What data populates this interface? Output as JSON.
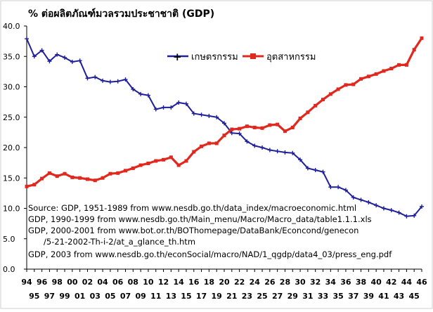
{
  "chart_data": {
    "type": "line",
    "title": "% ต่อผลิตภัณฑ์มวลรวมประชาชาติ (GDP)",
    "xlabel": "",
    "ylabel": "",
    "ylim": [
      0,
      40
    ],
    "yticks": [
      "0.0",
      "5.0",
      "10.0",
      "15.0",
      "20.0",
      "25.0",
      "30.0",
      "35.0",
      "40.0"
    ],
    "x": [
      "94",
      "95",
      "96",
      "97",
      "98",
      "99",
      "00",
      "01",
      "02",
      "03",
      "04",
      "05",
      "06",
      "07",
      "08",
      "09",
      "10",
      "11",
      "12",
      "13",
      "14",
      "15",
      "16",
      "17",
      "18",
      "19",
      "20",
      "21",
      "22",
      "23",
      "24",
      "25",
      "26",
      "27",
      "28",
      "29",
      "30",
      "31",
      "32",
      "33",
      "34",
      "35",
      "36",
      "37",
      "38",
      "39",
      "40",
      "41",
      "42",
      "43",
      "44",
      "45",
      "46"
    ],
    "xtick_top": [
      "94",
      "96",
      "98",
      "00",
      "02",
      "04",
      "06",
      "08",
      "10",
      "12",
      "14",
      "16",
      "18",
      "20",
      "22",
      "24",
      "26",
      "28",
      "30",
      "32",
      "34",
      "36",
      "38",
      "40",
      "42",
      "44",
      "46"
    ],
    "xtick_bottom": [
      "95",
      "97",
      "99",
      "01",
      "03",
      "05",
      "07",
      "09",
      "11",
      "13",
      "15",
      "17",
      "19",
      "21",
      "23",
      "25",
      "27",
      "29",
      "31",
      "33",
      "35",
      "37",
      "39",
      "41",
      "43",
      "45"
    ],
    "series": [
      {
        "name": "เกษตรกรรม",
        "color": "#1f1f9a",
        "marker": "plus",
        "values": [
          37.9,
          35.0,
          36.0,
          34.2,
          35.3,
          34.8,
          34.1,
          34.3,
          31.4,
          31.6,
          31.0,
          30.8,
          30.9,
          31.2,
          29.6,
          28.8,
          28.6,
          26.3,
          26.6,
          26.6,
          27.4,
          27.2,
          25.6,
          25.4,
          25.2,
          25.0,
          24.0,
          22.4,
          22.3,
          21.0,
          20.3,
          20.0,
          19.6,
          19.4,
          19.2,
          19.1,
          18.0,
          16.6,
          16.3,
          16.0,
          13.5,
          13.5,
          13.0,
          11.8,
          11.4,
          11.0,
          10.5,
          10.0,
          9.7,
          9.3,
          8.7,
          8.8,
          10.3
        ]
      },
      {
        "name": "อุตสาหกรรม",
        "color": "#e0281f",
        "marker": "square",
        "values": [
          13.6,
          13.9,
          14.9,
          15.8,
          15.3,
          15.7,
          15.1,
          15.0,
          14.8,
          14.6,
          15.0,
          15.7,
          15.8,
          16.2,
          16.6,
          17.1,
          17.4,
          17.8,
          18.0,
          18.4,
          17.1,
          17.8,
          19.3,
          20.2,
          20.7,
          20.7,
          22.0,
          23.0,
          23.1,
          23.5,
          23.3,
          23.2,
          23.7,
          23.8,
          22.7,
          23.3,
          24.8,
          25.8,
          26.9,
          27.9,
          28.8,
          29.6,
          30.3,
          30.4,
          31.3,
          31.7,
          32.1,
          32.6,
          33.0,
          33.6,
          33.6,
          36.1,
          38.0
        ]
      }
    ],
    "grid": false,
    "legend_position": "top-center",
    "notes": [
      "Source: GDP, 1951-1989 from www.nesdb.go.th/data_index/macroeconomic.html",
      "GDP, 1990-1999 from www.nesdb.go.th/Main_menu/Macro/Macro_data/table1.1.1.xls",
      "GDP, 2000-2001 from www.bot.or.th/BOThomepage/DataBank/Econcond/genecon",
      "/5-21-2002-Th-i-2/at_a_glance_th.htm",
      "GDP, 2003 from www.nesdb.go.th/econSocial/macro/NAD/1_qgdp/data4_03/press_eng.pdf"
    ]
  }
}
